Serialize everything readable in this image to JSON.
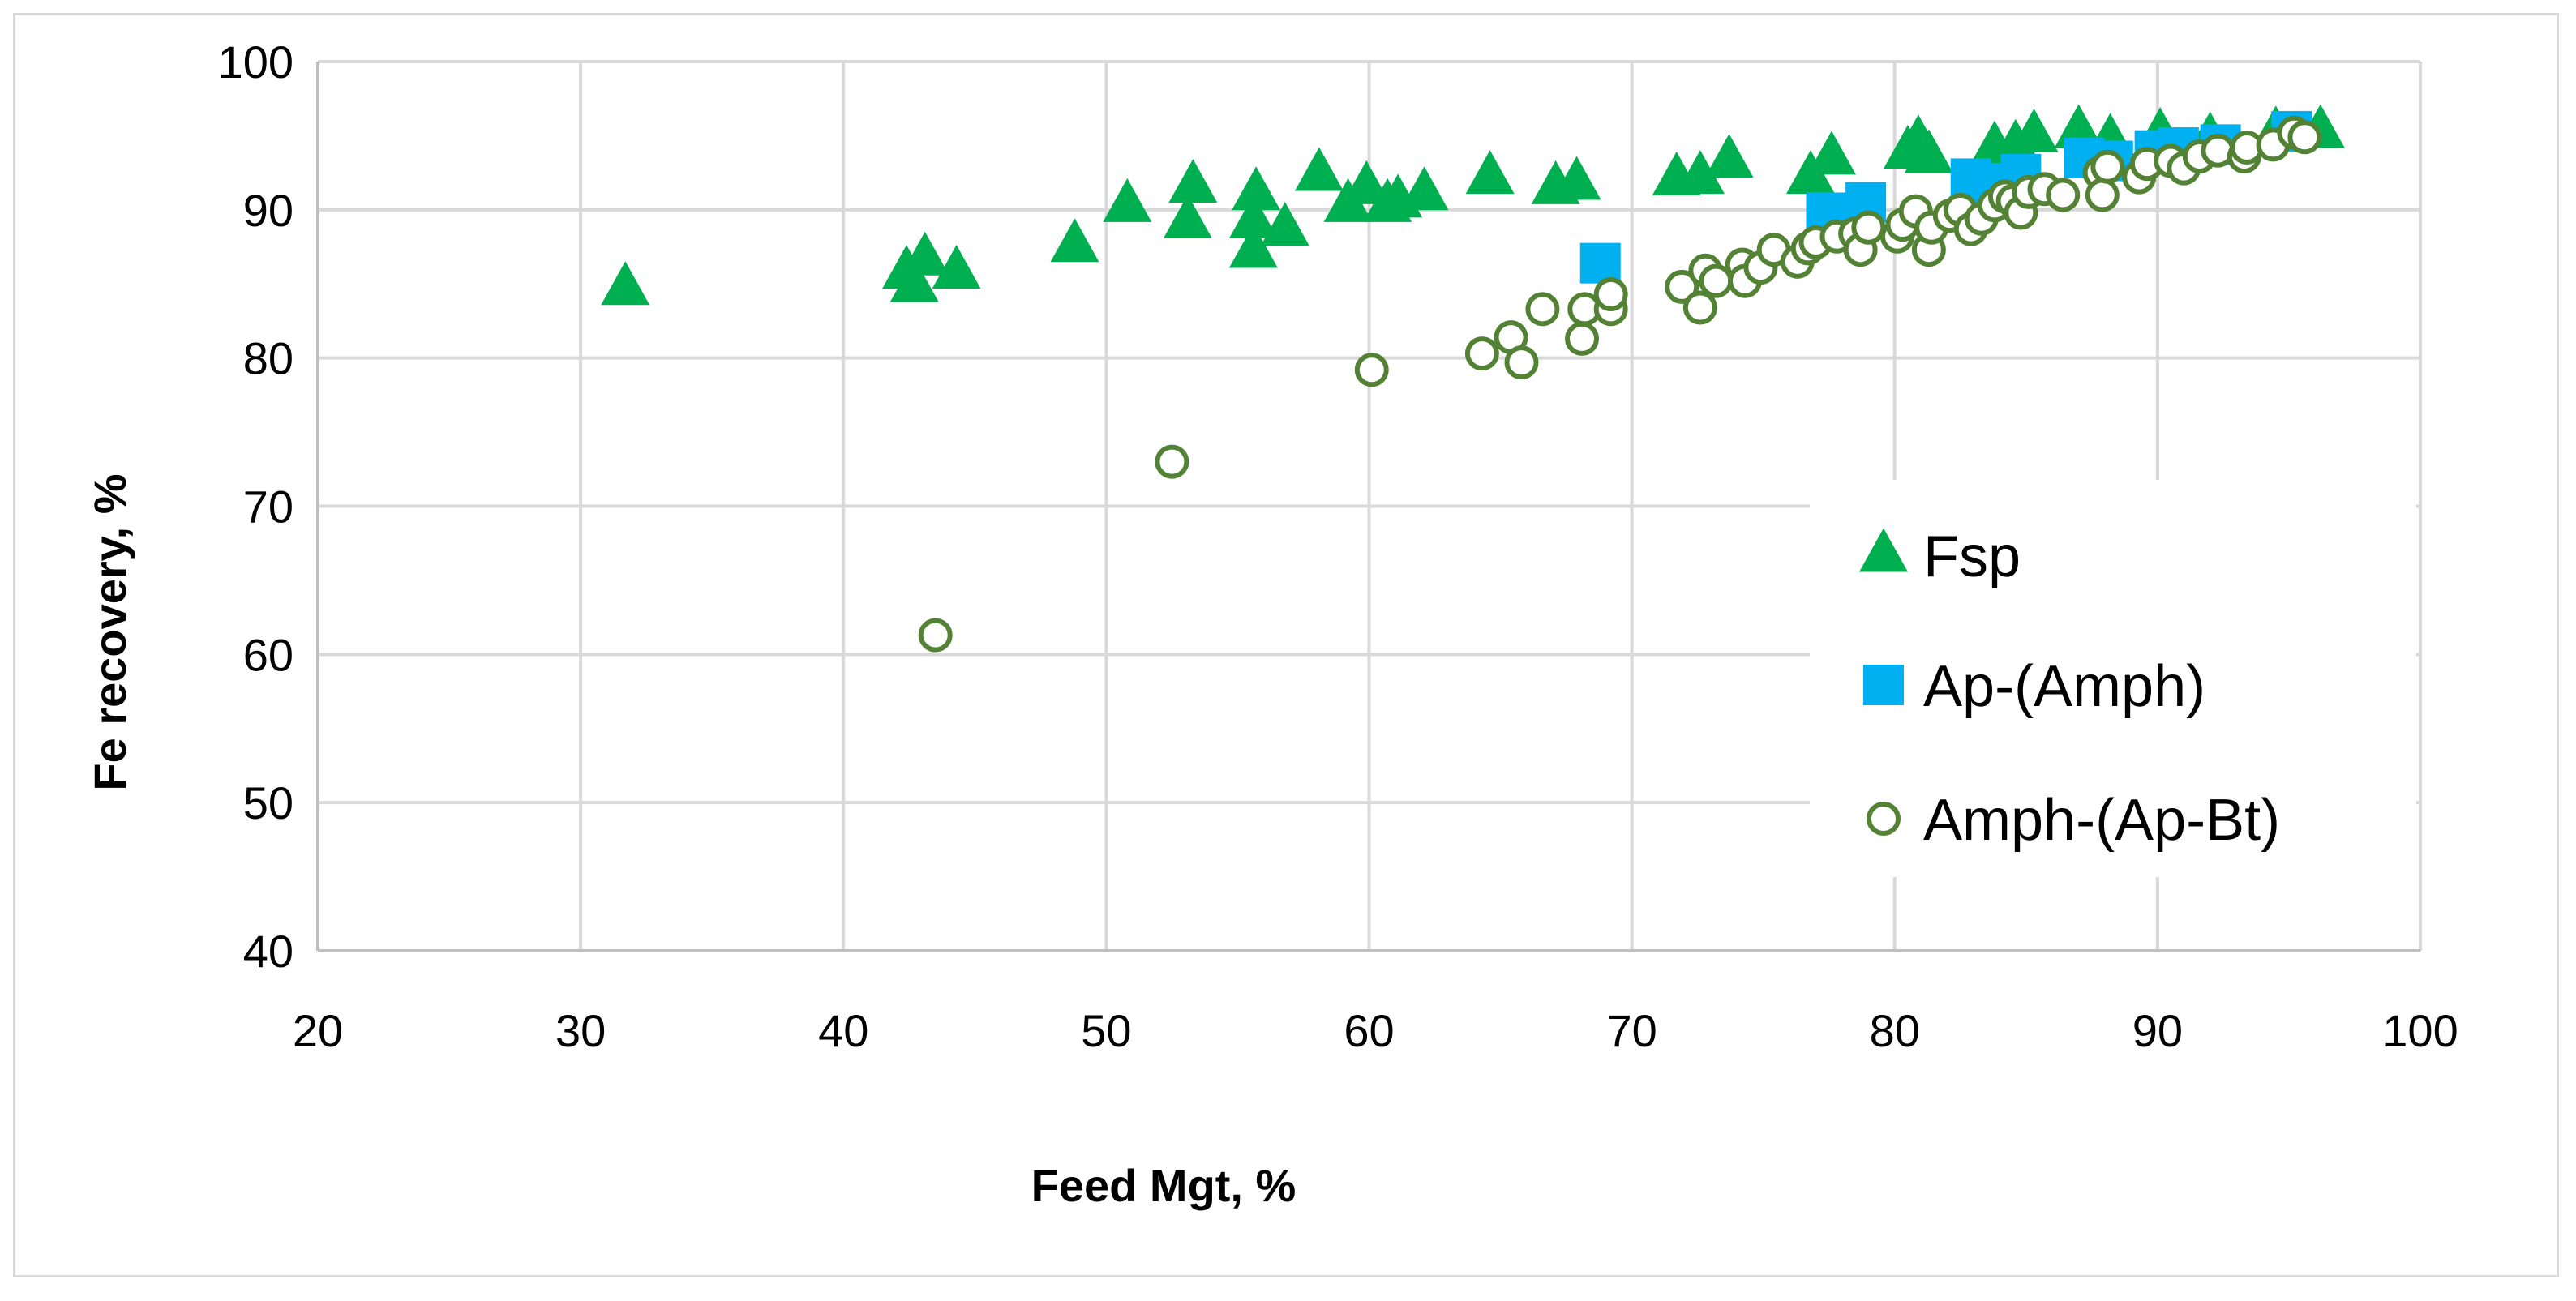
{
  "chart_data": {
    "type": "scatter",
    "title": "",
    "xlabel": "Feed Mgt, %",
    "ylabel": "Fe recovery, %",
    "xlim": [
      20,
      100
    ],
    "ylim": [
      40,
      100
    ],
    "xticks": [
      20,
      30,
      40,
      50,
      60,
      70,
      80,
      90,
      100
    ],
    "yticks": [
      40,
      50,
      60,
      70,
      80,
      90,
      100
    ],
    "grid": "vertical and horizontal",
    "legend_position": "right",
    "series": [
      {
        "name": "Fsp",
        "marker": "triangle",
        "color": "#00b050",
        "points": [
          [
            31.7,
            84.7
          ],
          [
            42.4,
            85.8
          ],
          [
            42.7,
            84.9
          ],
          [
            43.1,
            86.7
          ],
          [
            44.3,
            85.8
          ],
          [
            48.8,
            87.6
          ],
          [
            50.8,
            90.3
          ],
          [
            53.1,
            89.2
          ],
          [
            53.3,
            91.6
          ],
          [
            55.6,
            89.2
          ],
          [
            55.6,
            87.2
          ],
          [
            55.7,
            91.1
          ],
          [
            56.8,
            88.7
          ],
          [
            58.1,
            92.4
          ],
          [
            59.2,
            90.3
          ],
          [
            59.9,
            91.5
          ],
          [
            60.7,
            90.3
          ],
          [
            61.1,
            90.6
          ],
          [
            62.1,
            91.1
          ],
          [
            64.6,
            92.2
          ],
          [
            67.1,
            91.5
          ],
          [
            67.9,
            91.8
          ],
          [
            71.7,
            92.1
          ],
          [
            72.6,
            92.2
          ],
          [
            73.7,
            93.3
          ],
          [
            76.8,
            92.2
          ],
          [
            77.6,
            93.5
          ],
          [
            80.5,
            93.9
          ],
          [
            80.9,
            94.6
          ],
          [
            81.3,
            93.6
          ],
          [
            83.8,
            94.2
          ],
          [
            84.6,
            94.3
          ],
          [
            85.3,
            95.0
          ],
          [
            87.0,
            95.3
          ],
          [
            88.2,
            94.7
          ],
          [
            90.1,
            95.1
          ],
          [
            92.0,
            94.8
          ],
          [
            94.5,
            95.2
          ],
          [
            96.2,
            95.3
          ]
        ]
      },
      {
        "name": "Ap-(Amph)",
        "marker": "square",
        "color": "#00b0f0",
        "points": [
          [
            68.8,
            86.4
          ],
          [
            77.4,
            89.8
          ],
          [
            78.9,
            90.5
          ],
          [
            82.9,
            92.1
          ],
          [
            83.6,
            91.8
          ],
          [
            84.8,
            92.4
          ],
          [
            87.2,
            93.5
          ],
          [
            88.3,
            93.3
          ],
          [
            89.9,
            94.0
          ],
          [
            90.8,
            94.2
          ],
          [
            92.4,
            94.4
          ],
          [
            95.1,
            95.3
          ]
        ]
      },
      {
        "name": "Amph-(Ap-Bt)",
        "marker": "open-circle",
        "color": "#548235",
        "points": [
          [
            43.5,
            61.3
          ],
          [
            52.5,
            73.0
          ],
          [
            60.1,
            79.2
          ],
          [
            64.3,
            80.3
          ],
          [
            65.4,
            81.4
          ],
          [
            65.8,
            79.7
          ],
          [
            66.6,
            83.3
          ],
          [
            68.1,
            81.3
          ],
          [
            68.2,
            83.3
          ],
          [
            69.2,
            83.3
          ],
          [
            69.2,
            84.3
          ],
          [
            71.9,
            84.8
          ],
          [
            72.6,
            83.4
          ],
          [
            72.8,
            85.9
          ],
          [
            73.2,
            85.2
          ],
          [
            74.2,
            86.3
          ],
          [
            74.3,
            85.2
          ],
          [
            74.9,
            86.1
          ],
          [
            75.4,
            87.3
          ],
          [
            76.3,
            86.5
          ],
          [
            76.7,
            87.4
          ],
          [
            77.0,
            87.8
          ],
          [
            77.8,
            88.2
          ],
          [
            78.5,
            88.4
          ],
          [
            78.7,
            87.3
          ],
          [
            79.0,
            88.8
          ],
          [
            80.1,
            88.2
          ],
          [
            80.3,
            89.0
          ],
          [
            80.8,
            89.9
          ],
          [
            81.3,
            87.3
          ],
          [
            81.4,
            88.8
          ],
          [
            82.1,
            89.6
          ],
          [
            82.5,
            90.0
          ],
          [
            82.9,
            88.7
          ],
          [
            83.3,
            89.4
          ],
          [
            83.8,
            90.3
          ],
          [
            84.2,
            90.9
          ],
          [
            84.5,
            90.6
          ],
          [
            84.8,
            89.8
          ],
          [
            85.1,
            91.2
          ],
          [
            85.7,
            91.4
          ],
          [
            86.4,
            91.0
          ],
          [
            87.8,
            92.5
          ],
          [
            87.9,
            91.0
          ],
          [
            88.1,
            92.9
          ],
          [
            89.3,
            92.2
          ],
          [
            89.6,
            93.1
          ],
          [
            90.5,
            93.3
          ],
          [
            91.0,
            92.8
          ],
          [
            91.6,
            93.6
          ],
          [
            92.3,
            94.0
          ],
          [
            93.3,
            93.6
          ],
          [
            93.4,
            94.2
          ],
          [
            94.4,
            94.4
          ],
          [
            95.2,
            95.2
          ],
          [
            95.6,
            94.9
          ]
        ]
      }
    ]
  }
}
